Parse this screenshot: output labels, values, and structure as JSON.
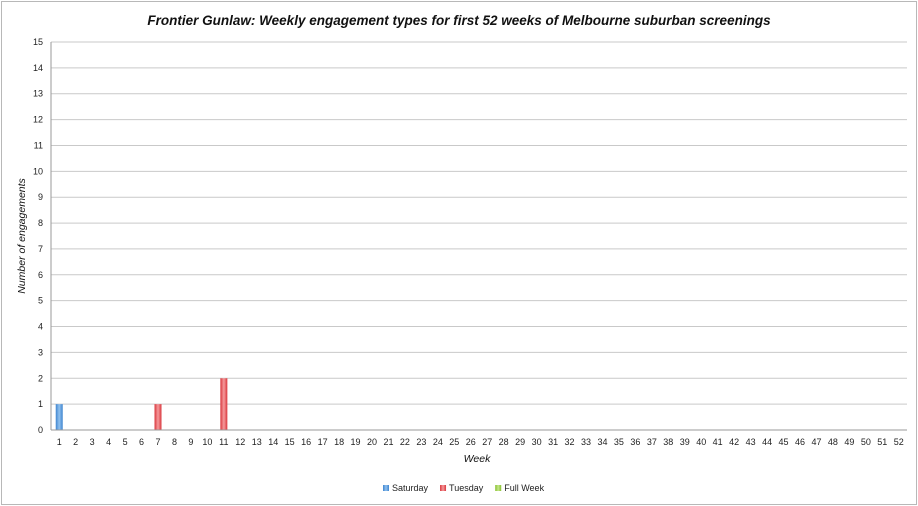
{
  "chart_data": {
    "type": "bar",
    "stacked": true,
    "title": "Frontier Gunlaw: Weekly engagement types for first 52 weeks of Melbourne suburban screenings",
    "xlabel": "Week",
    "ylabel": "Number of engagements",
    "ylim": [
      0,
      15
    ],
    "yticks": [
      0,
      1,
      2,
      3,
      4,
      5,
      6,
      7,
      8,
      9,
      10,
      11,
      12,
      13,
      14,
      15
    ],
    "grid": true,
    "legend_position": "bottom",
    "categories": [
      "1",
      "2",
      "3",
      "4",
      "5",
      "6",
      "7",
      "8",
      "9",
      "10",
      "11",
      "12",
      "13",
      "14",
      "15",
      "16",
      "17",
      "18",
      "19",
      "20",
      "21",
      "22",
      "23",
      "24",
      "25",
      "26",
      "27",
      "28",
      "29",
      "30",
      "31",
      "32",
      "33",
      "34",
      "35",
      "36",
      "37",
      "38",
      "39",
      "40",
      "41",
      "42",
      "43",
      "44",
      "45",
      "46",
      "47",
      "48",
      "49",
      "50",
      "51",
      "52"
    ],
    "series": [
      {
        "name": "Saturday",
        "color": "#5b9bd5",
        "values": [
          1,
          0,
          0,
          0,
          0,
          0,
          0,
          0,
          0,
          0,
          0,
          0,
          0,
          0,
          0,
          0,
          0,
          0,
          0,
          0,
          0,
          0,
          0,
          0,
          0,
          0,
          0,
          0,
          0,
          0,
          0,
          0,
          0,
          0,
          0,
          0,
          0,
          0,
          0,
          0,
          0,
          0,
          0,
          0,
          0,
          0,
          0,
          0,
          0,
          0,
          0,
          0
        ]
      },
      {
        "name": "Tuesday",
        "color": "#e8565a",
        "values": [
          0,
          0,
          0,
          0,
          0,
          0,
          1,
          0,
          0,
          0,
          2,
          0,
          0,
          0,
          0,
          0,
          0,
          0,
          0,
          0,
          0,
          0,
          0,
          0,
          0,
          0,
          0,
          0,
          0,
          0,
          0,
          0,
          0,
          0,
          0,
          0,
          0,
          0,
          0,
          0,
          0,
          0,
          0,
          0,
          0,
          0,
          0,
          0,
          0,
          0,
          0,
          0
        ]
      },
      {
        "name": "Full Week",
        "color": "#9bcf3e",
        "values": [
          0,
          0,
          0,
          0,
          0,
          0,
          0,
          0,
          0,
          0,
          0,
          0,
          0,
          0,
          0,
          0,
          0,
          0,
          0,
          0,
          0,
          0,
          0,
          0,
          0,
          0,
          0,
          0,
          0,
          0,
          0,
          0,
          0,
          0,
          0,
          0,
          0,
          0,
          0,
          0,
          0,
          0,
          0,
          0,
          0,
          0,
          0,
          0,
          0,
          0,
          0,
          0
        ]
      }
    ]
  }
}
